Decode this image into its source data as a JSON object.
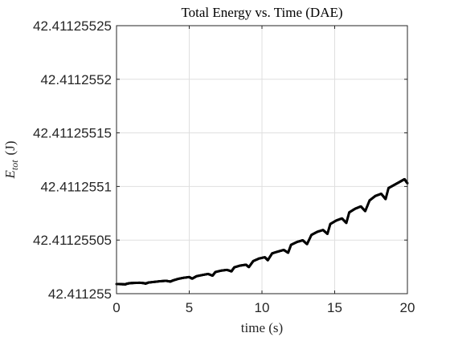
{
  "chart_data": {
    "type": "scatter",
    "title": "Total Energy vs. Time (DAE)",
    "xlabel": "time (s)",
    "ylabel_main": "E",
    "ylabel_sub": "tot",
    "ylabel_unit": "(J)",
    "xlim": [
      0,
      20
    ],
    "ylim": [
      42.411255,
      42.41125525
    ],
    "x_ticks": [
      0,
      5,
      10,
      15,
      20
    ],
    "x_tick_labels": [
      "0",
      "5",
      "10",
      "15",
      "20"
    ],
    "y_ticks": [
      42.411255,
      42.41125505,
      42.4112551,
      42.41125515,
      42.4112552,
      42.41125525
    ],
    "y_tick_labels": [
      "42.411255",
      "42.41125505",
      "42.4112551",
      "42.41125515",
      "42.4112552",
      "42.41125525"
    ],
    "grid": true,
    "marker_color": "#000000",
    "series": [
      {
        "points": [
          [
            0.0,
            42.411255009
          ],
          [
            0.3,
            42.4112550089
          ],
          [
            0.6,
            42.4112550087
          ],
          [
            0.7,
            42.4112550092
          ],
          [
            0.9,
            42.4112550098
          ],
          [
            1.2,
            42.41125501
          ],
          [
            1.6,
            42.4112550102
          ],
          [
            1.9,
            42.4112550098
          ],
          [
            2.0,
            42.4112550094
          ],
          [
            2.2,
            42.4112550104
          ],
          [
            2.6,
            42.411255011
          ],
          [
            3.0,
            42.4112550116
          ],
          [
            3.4,
            42.411255012
          ],
          [
            3.7,
            42.4112550113
          ],
          [
            3.9,
            42.4112550124
          ],
          [
            4.2,
            42.4112550137
          ],
          [
            4.6,
            42.4112550148
          ],
          [
            5.0,
            42.4112550155
          ],
          [
            5.2,
            42.411255014
          ],
          [
            5.5,
            42.4112550163
          ],
          [
            5.9,
            42.4112550174
          ],
          [
            6.3,
            42.4112550184
          ],
          [
            6.6,
            42.4112550168
          ],
          [
            6.8,
            42.4112550202
          ],
          [
            7.2,
            42.4112550215
          ],
          [
            7.6,
            42.4112550222
          ],
          [
            7.9,
            42.4112550208
          ],
          [
            8.1,
            42.4112550246
          ],
          [
            8.5,
            42.4112550262
          ],
          [
            8.9,
            42.411255027
          ],
          [
            9.1,
            42.4112550248
          ],
          [
            9.4,
            42.4112550304
          ],
          [
            9.8,
            42.4112550328
          ],
          [
            10.2,
            42.411255034
          ],
          [
            10.4,
            42.4112550312
          ],
          [
            10.7,
            42.4112550376
          ],
          [
            11.1,
            42.4112550393
          ],
          [
            11.5,
            42.4112550408
          ],
          [
            11.8,
            42.4112550382
          ],
          [
            12.0,
            42.4112550456
          ],
          [
            12.4,
            42.4112550482
          ],
          [
            12.8,
            42.4112550498
          ],
          [
            13.1,
            42.4112550462
          ],
          [
            13.4,
            42.4112550548
          ],
          [
            13.8,
            42.4112550577
          ],
          [
            14.2,
            42.4112550594
          ],
          [
            14.5,
            42.4112550558
          ],
          [
            14.7,
            42.411255065
          ],
          [
            15.1,
            42.4112550682
          ],
          [
            15.5,
            42.4112550702
          ],
          [
            15.8,
            42.411255066
          ],
          [
            16.0,
            42.4112550758
          ],
          [
            16.4,
            42.4112550792
          ],
          [
            16.8,
            42.4112550814
          ],
          [
            17.1,
            42.411255077
          ],
          [
            17.4,
            42.411255087
          ],
          [
            17.8,
            42.4112550912
          ],
          [
            18.2,
            42.4112550932
          ],
          [
            18.5,
            42.4112550882
          ],
          [
            18.7,
            42.4112550985
          ],
          [
            19.1,
            42.4112551015
          ],
          [
            19.5,
            42.4112551045
          ],
          [
            19.8,
            42.4112551068
          ],
          [
            20.0,
            42.411255103
          ]
        ]
      }
    ]
  }
}
